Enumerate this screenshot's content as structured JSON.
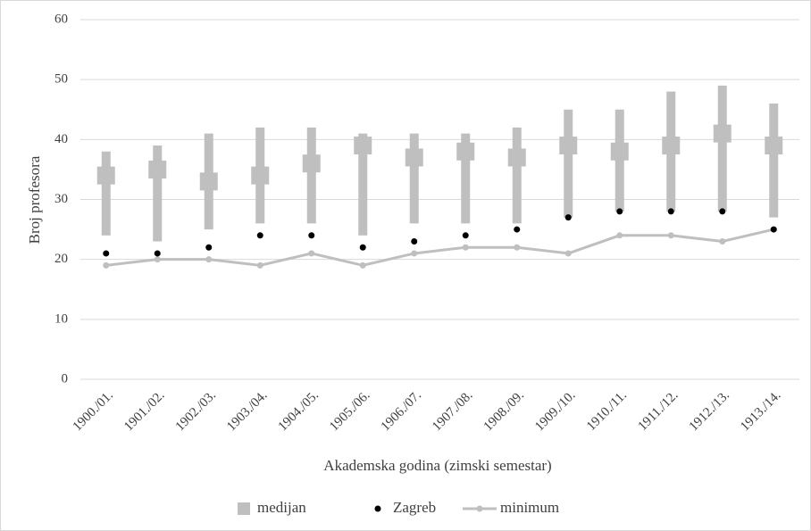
{
  "chart_data": {
    "type": "range-median",
    "x_label": "Akademska godina (zimski semestar)",
    "y_label": "Broj profesora",
    "categories": [
      "1900./01.",
      "1901./02.",
      "1902./03.",
      "1903./04.",
      "1904./05.",
      "1905./06.",
      "1906./07.",
      "1907./08.",
      "1908./09.",
      "1909./10.",
      "1910./11.",
      "1911./12.",
      "1912./13.",
      "1913./14."
    ],
    "range_low": [
      24,
      23,
      25,
      26,
      26,
      24,
      26,
      26,
      26,
      27,
      28,
      28,
      28,
      27
    ],
    "range_high": [
      38,
      39,
      41,
      42,
      42,
      41,
      41,
      41,
      42,
      45,
      45,
      48,
      49,
      46
    ],
    "series": [
      {
        "name": "medijan",
        "color": "#bfbfbf",
        "values": [
          34,
          35,
          33,
          34,
          36,
          39,
          37,
          38,
          37,
          39,
          38,
          39,
          41,
          39
        ]
      },
      {
        "name": "Zagreb",
        "color": "#000000",
        "values": [
          21,
          21,
          22,
          24,
          24,
          22,
          23,
          24,
          25,
          27,
          28,
          28,
          28,
          25
        ]
      },
      {
        "name": "minimum",
        "color": "#bfbfbf",
        "values": [
          19,
          20,
          20,
          19,
          21,
          19,
          21,
          22,
          22,
          21,
          24,
          24,
          23,
          25
        ]
      }
    ],
    "ylim": [
      0,
      60
    ],
    "yticks": [
      0,
      10,
      20,
      30,
      40,
      50,
      60
    ],
    "grid": true
  }
}
